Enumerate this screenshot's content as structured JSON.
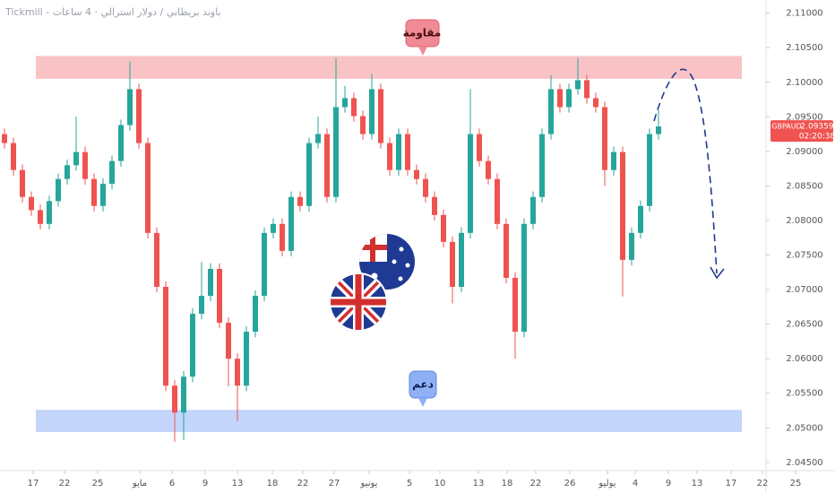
{
  "chart_data": {
    "type": "candlestick",
    "title": "Tickmill - باوند بريطاني / دولار استرالي · 4 ساعات",
    "up_color": "#26a69a",
    "down_color": "#ef5350",
    "open": [
      2.0925,
      2.0912,
      2.0873,
      2.0834,
      2.0815,
      2.0795,
      2.0828,
      2.086,
      2.088,
      2.0899,
      2.086,
      2.0821,
      2.0853,
      2.0886,
      2.0938,
      2.099,
      2.0912,
      2.0782,
      2.0704,
      2.0561,
      2.0522,
      2.0574,
      2.0665,
      2.0691,
      2.073,
      2.0652,
      2.06,
      2.0561,
      2.0639,
      2.0691,
      2.0782,
      2.0795,
      2.0756,
      2.0834,
      2.0821,
      2.0912,
      2.0925,
      2.0834,
      2.0964,
      2.0977,
      2.0951,
      2.0925,
      2.099,
      2.0912,
      2.0873,
      2.0925,
      2.0873,
      2.086,
      2.0834,
      2.0808,
      2.0769,
      2.0704,
      2.0782,
      2.0925,
      2.0886,
      2.086,
      2.0795,
      2.0717,
      2.0639,
      2.0795,
      2.0834,
      2.0925,
      2.099,
      2.0964,
      2.099,
      2.1003,
      2.0977,
      2.0964,
      2.0873,
      2.0899,
      2.0743,
      2.0782,
      2.0821,
      2.0925
    ],
    "high": [
      2.0933,
      2.092,
      2.0881,
      2.0842,
      2.0823,
      2.0836,
      2.0868,
      2.0888,
      2.095,
      2.0907,
      2.0868,
      2.0861,
      2.0894,
      2.0946,
      2.103,
      2.0998,
      2.092,
      2.079,
      2.0712,
      2.0569,
      2.0582,
      2.0673,
      2.074,
      2.0738,
      2.0738,
      2.066,
      2.0608,
      2.0647,
      2.0699,
      2.079,
      2.0803,
      2.0803,
      2.0842,
      2.0842,
      2.092,
      2.095,
      2.0933,
      2.1035,
      2.0995,
      2.0985,
      2.0959,
      2.1012,
      2.0998,
      2.092,
      2.0933,
      2.0933,
      2.0881,
      2.0868,
      2.0842,
      2.0816,
      2.0777,
      2.079,
      2.099,
      2.0933,
      2.0894,
      2.0868,
      2.0803,
      2.0725,
      2.0803,
      2.0842,
      2.0933,
      2.101,
      2.0998,
      2.0998,
      2.1035,
      2.1011,
      2.0985,
      2.0972,
      2.0907,
      2.0907,
      2.079,
      2.0829,
      2.0933,
      2.096
    ],
    "low": [
      2.0904,
      2.0865,
      2.0826,
      2.0807,
      2.0787,
      2.0787,
      2.082,
      2.0852,
      2.0872,
      2.0852,
      2.0813,
      2.0813,
      2.0845,
      2.0878,
      2.093,
      2.0904,
      2.0774,
      2.0696,
      2.0553,
      2.048,
      2.0482,
      2.0566,
      2.0657,
      2.0683,
      2.0644,
      2.056,
      2.051,
      2.0553,
      2.0631,
      2.0683,
      2.0774,
      2.0748,
      2.0748,
      2.0813,
      2.0813,
      2.0904,
      2.0826,
      2.0826,
      2.0956,
      2.0943,
      2.0917,
      2.0917,
      2.0904,
      2.0865,
      2.0865,
      2.0865,
      2.0852,
      2.0826,
      2.08,
      2.0761,
      2.068,
      2.0696,
      2.0774,
      2.0878,
      2.0852,
      2.0787,
      2.0709,
      2.06,
      2.0631,
      2.0787,
      2.0826,
      2.0917,
      2.0956,
      2.0956,
      2.0982,
      2.0969,
      2.0956,
      2.085,
      2.0865,
      2.069,
      2.0735,
      2.0774,
      2.0813,
      2.0917
    ],
    "close": [
      2.0912,
      2.0873,
      2.0834,
      2.0815,
      2.0795,
      2.0828,
      2.086,
      2.088,
      2.0899,
      2.086,
      2.0821,
      2.0853,
      2.0886,
      2.0938,
      2.099,
      2.0912,
      2.0782,
      2.0704,
      2.0561,
      2.0522,
      2.0574,
      2.0665,
      2.0691,
      2.073,
      2.0652,
      2.06,
      2.0561,
      2.0639,
      2.0691,
      2.0782,
      2.0795,
      2.0756,
      2.0834,
      2.0821,
      2.0912,
      2.0925,
      2.0834,
      2.0964,
      2.0977,
      2.0951,
      2.0925,
      2.099,
      2.0912,
      2.0873,
      2.0925,
      2.0873,
      2.086,
      2.0834,
      2.0808,
      2.0769,
      2.0704,
      2.0782,
      2.0925,
      2.0886,
      2.086,
      2.0795,
      2.0717,
      2.0639,
      2.0795,
      2.0834,
      2.0925,
      2.099,
      2.0964,
      2.099,
      2.1003,
      2.0977,
      2.0964,
      2.0873,
      2.0899,
      2.0743,
      2.0782,
      2.0821,
      2.0925,
      2.0936
    ],
    "xlim": [
      0,
      93.2
    ],
    "xticks": [
      {
        "value": 3.7,
        "label": "17"
      },
      {
        "value": 7.2,
        "label": "22"
      },
      {
        "value": 10.9,
        "label": "25"
      },
      {
        "value": 15.6,
        "label": "مايو"
      },
      {
        "value": 19.2,
        "label": "6"
      },
      {
        "value": 22.9,
        "label": "9"
      },
      {
        "value": 26.5,
        "label": "13"
      },
      {
        "value": 30.4,
        "label": "18"
      },
      {
        "value": 33.8,
        "label": "22"
      },
      {
        "value": 37.3,
        "label": "27"
      },
      {
        "value": 41.2,
        "label": "يونيو"
      },
      {
        "value": 45.7,
        "label": "5"
      },
      {
        "value": 49.1,
        "label": "10"
      },
      {
        "value": 53.4,
        "label": "13"
      },
      {
        "value": 56.6,
        "label": "18"
      },
      {
        "value": 59.8,
        "label": "22"
      },
      {
        "value": 63.6,
        "label": "26"
      },
      {
        "value": 67.8,
        "label": "يوليو"
      },
      {
        "value": 70.9,
        "label": "4"
      },
      {
        "value": 74.6,
        "label": "9"
      },
      {
        "value": 77.8,
        "label": "13"
      },
      {
        "value": 81.6,
        "label": "17"
      },
      {
        "value": 85.1,
        "label": "22"
      },
      {
        "value": 88.8,
        "label": "25"
      }
    ],
    "ylim": [
      2.0442,
      2.1119
    ],
    "yticks": [
      {
        "value": 2.045,
        "label": "2.04500"
      },
      {
        "value": 2.05,
        "label": "2.05000"
      },
      {
        "value": 2.055,
        "label": "2.05500"
      },
      {
        "value": 2.06,
        "label": "2.06000"
      },
      {
        "value": 2.065,
        "label": "2.06500"
      },
      {
        "value": 2.07,
        "label": "2.07000"
      },
      {
        "value": 2.075,
        "label": "2.07500"
      },
      {
        "value": 2.08,
        "label": "2.08000"
      },
      {
        "value": 2.085,
        "label": "2.08500"
      },
      {
        "value": 2.09,
        "label": "2.09000"
      },
      {
        "value": 2.095,
        "label": "2.09500"
      },
      {
        "value": 2.1,
        "label": "2.10000"
      },
      {
        "value": 2.105,
        "label": "2.10500"
      },
      {
        "value": 2.11,
        "label": "2.11000"
      }
    ],
    "grid": false,
    "resistance_zone": {
      "label": "مقاومة",
      "low": 2.1005,
      "high": 2.1038,
      "color": "#f8bcc0"
    },
    "support_zone": {
      "label": "دعم",
      "low": 2.0494,
      "high": 2.0526,
      "color": "#bcd0fb"
    },
    "price_tag": {
      "symbol": "GBPAUD",
      "price": "2.09359",
      "countdown": "02:20:38",
      "color": "#ef5350"
    }
  }
}
